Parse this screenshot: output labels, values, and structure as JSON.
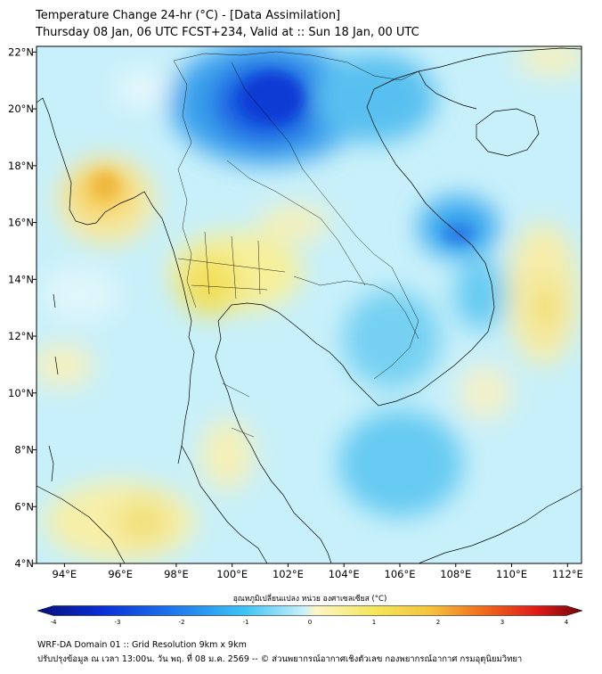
{
  "header": {
    "title": "Temperature Change 24-hr (°C) - [Data Assimilation]",
    "subtitle": "Thursday 08 Jan, 06 UTC FCST+234, Valid at :: Sun 18 Jan, 00 UTC"
  },
  "map": {
    "lon_range": [
      93,
      112.5
    ],
    "lat_range": [
      4,
      22.2
    ],
    "x_ticks": [
      "94°E",
      "96°E",
      "98°E",
      "100°E",
      "102°E",
      "104°E",
      "106°E",
      "108°E",
      "110°E",
      "112°E"
    ],
    "y_ticks": [
      "22°N",
      "20°N",
      "18°N",
      "16°N",
      "14°N",
      "12°N",
      "10°N",
      "8°N",
      "6°N",
      "4°N"
    ],
    "background_color": "#c8f0fa",
    "coast_color": "#000000"
  },
  "colorbar": {
    "label": "อุณหภูมิเปลี่ยนแปลง หน่วย องศาเซลเซียส (°C)",
    "ticks": [
      "-4",
      "-3",
      "-2",
      "-1",
      "0",
      "1",
      "2",
      "3",
      "4"
    ],
    "range": [
      -4,
      4
    ]
  },
  "footer": {
    "line1": "WRF-DA Domain 01 :: Grid Resolution 9km x 9km",
    "line2": "ปรับปรุงข้อมูล ณ เวลา 13:00น. วัน พฤ. ที่ 08 ม.ค. 2569 -- © ส่วนพยากรณ์อากาศเชิงตัวเลข กองพยากรณ์อากาศ กรมอุตุนิยมวิทยา"
  }
}
